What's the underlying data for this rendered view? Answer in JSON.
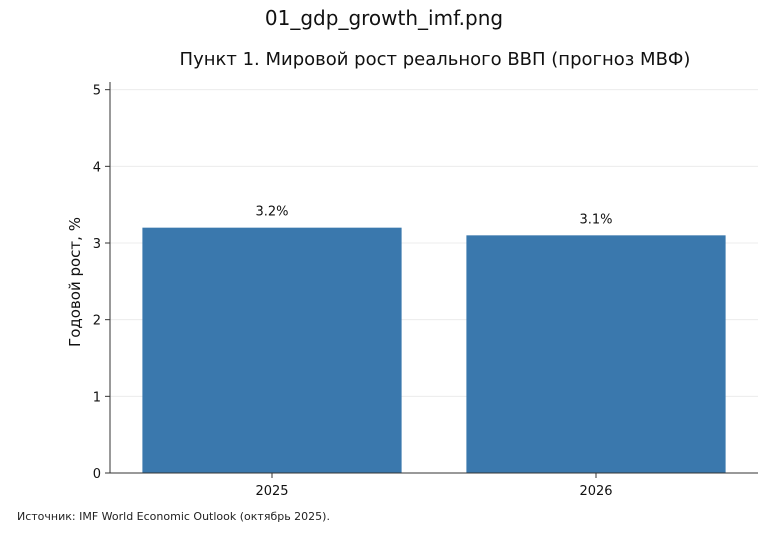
{
  "file_name": "01_gdp_growth_imf.png",
  "source_note": "Источник: IMF World Economic Outlook (октябрь 2025).",
  "colors": {
    "bar": "#3a78ad",
    "grid": "#ececec",
    "axis": "#333333"
  },
  "chart_data": {
    "type": "bar",
    "title": "Пункт 1. Мировой рост реального ВВП (прогноз МВФ)",
    "xlabel": "",
    "ylabel": "Годовой рост, %",
    "categories": [
      "2025",
      "2026"
    ],
    "values": [
      3.2,
      3.1
    ],
    "data_labels": [
      "3.2%",
      "3.1%"
    ],
    "ylim": [
      0,
      5.1
    ],
    "yticks": [
      0,
      1,
      2,
      3,
      4,
      5
    ],
    "grid": "horizontal"
  }
}
